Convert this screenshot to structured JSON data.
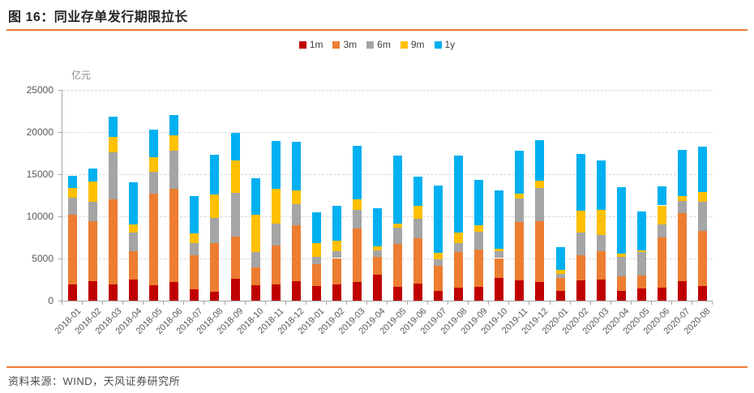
{
  "title": {
    "text": "图 16：同业存单发行期限拉长"
  },
  "legend": {
    "items": [
      {
        "label": "1m",
        "color": "#C00000"
      },
      {
        "label": "3m",
        "color": "#ED7D31"
      },
      {
        "label": "6m",
        "color": "#A5A5A5"
      },
      {
        "label": "9m",
        "color": "#FFC000"
      },
      {
        "label": "1y",
        "color": "#00B0F0"
      }
    ]
  },
  "axes": {
    "unit": "亿元",
    "y_ticks": [
      0,
      5000,
      10000,
      15000,
      20000,
      25000
    ]
  },
  "footer": {
    "source": "资料来源：WIND，天风证券研究所"
  },
  "colors": {
    "accent_rule": "#ED7D31",
    "gridline": "#D9D9D9",
    "axis_line": "#A6A6A6",
    "tick_label": "#595959"
  },
  "chart_data": {
    "type": "bar",
    "stacked": true,
    "title": "同业存单发行期限拉长",
    "xlabel": "",
    "ylabel": "亿元",
    "ylim": [
      0,
      25000
    ],
    "grid": true,
    "legend_position": "top",
    "categories": [
      "2018-01",
      "2018-02",
      "2018-03",
      "2018-04",
      "2018-05",
      "2018-06",
      "2018-07",
      "2018-08",
      "2018-09",
      "2018-10",
      "2018-11",
      "2018-12",
      "2019-01",
      "2019-02",
      "2019-03",
      "2019-04",
      "2019-05",
      "2019-06",
      "2019-07",
      "2019-08",
      "2019-09",
      "2019-10",
      "2019-11",
      "2019-12",
      "2020-01",
      "2020-02",
      "2020-03",
      "2020-04",
      "2020-05",
      "2020-06",
      "2020-07",
      "2020-08"
    ],
    "series": [
      {
        "name": "1m",
        "color": "#C00000",
        "values": [
          1950,
          2300,
          1900,
          2500,
          1850,
          2200,
          1300,
          1050,
          2550,
          1850,
          1900,
          2300,
          1750,
          1900,
          2200,
          3100,
          1650,
          2000,
          1200,
          1550,
          1600,
          2650,
          2400,
          2200,
          1200,
          2400,
          2500,
          1200,
          1400,
          1500,
          2300,
          1750
        ]
      },
      {
        "name": "3m",
        "color": "#ED7D31",
        "values": [
          8200,
          7100,
          10150,
          3400,
          10800,
          11100,
          4100,
          5750,
          5050,
          2100,
          4600,
          6600,
          2600,
          3150,
          6400,
          2100,
          5100,
          5450,
          2950,
          4200,
          4450,
          2400,
          6950,
          7250,
          1500,
          3000,
          3350,
          1700,
          1600,
          6000,
          8050,
          6500
        ]
      },
      {
        "name": "6m",
        "color": "#A5A5A5",
        "values": [
          2100,
          2350,
          5550,
          2150,
          2600,
          4500,
          1400,
          3050,
          5150,
          1800,
          2650,
          2550,
          850,
          800,
          2150,
          750,
          1900,
          2250,
          800,
          1050,
          2150,
          800,
          2800,
          3900,
          500,
          2700,
          1900,
          2300,
          2750,
          1550,
          1450,
          3500
        ]
      },
      {
        "name": "9m",
        "color": "#FFC000",
        "values": [
          1100,
          2350,
          1800,
          1000,
          1750,
          1800,
          1200,
          2750,
          3900,
          4400,
          4100,
          1600,
          1650,
          1300,
          1300,
          500,
          450,
          1550,
          700,
          1300,
          750,
          350,
          500,
          900,
          500,
          2550,
          3050,
          350,
          200,
          2250,
          650,
          1100
        ]
      },
      {
        "name": "1y",
        "color": "#00B0F0",
        "values": [
          1500,
          1550,
          2450,
          5000,
          3300,
          2450,
          4400,
          4700,
          3250,
          4350,
          5700,
          5800,
          3600,
          4100,
          6350,
          4550,
          8100,
          3450,
          8000,
          9150,
          5350,
          6900,
          5150,
          4800,
          2650,
          6750,
          5850,
          7950,
          4600,
          2250,
          5450,
          5450
        ]
      }
    ]
  }
}
